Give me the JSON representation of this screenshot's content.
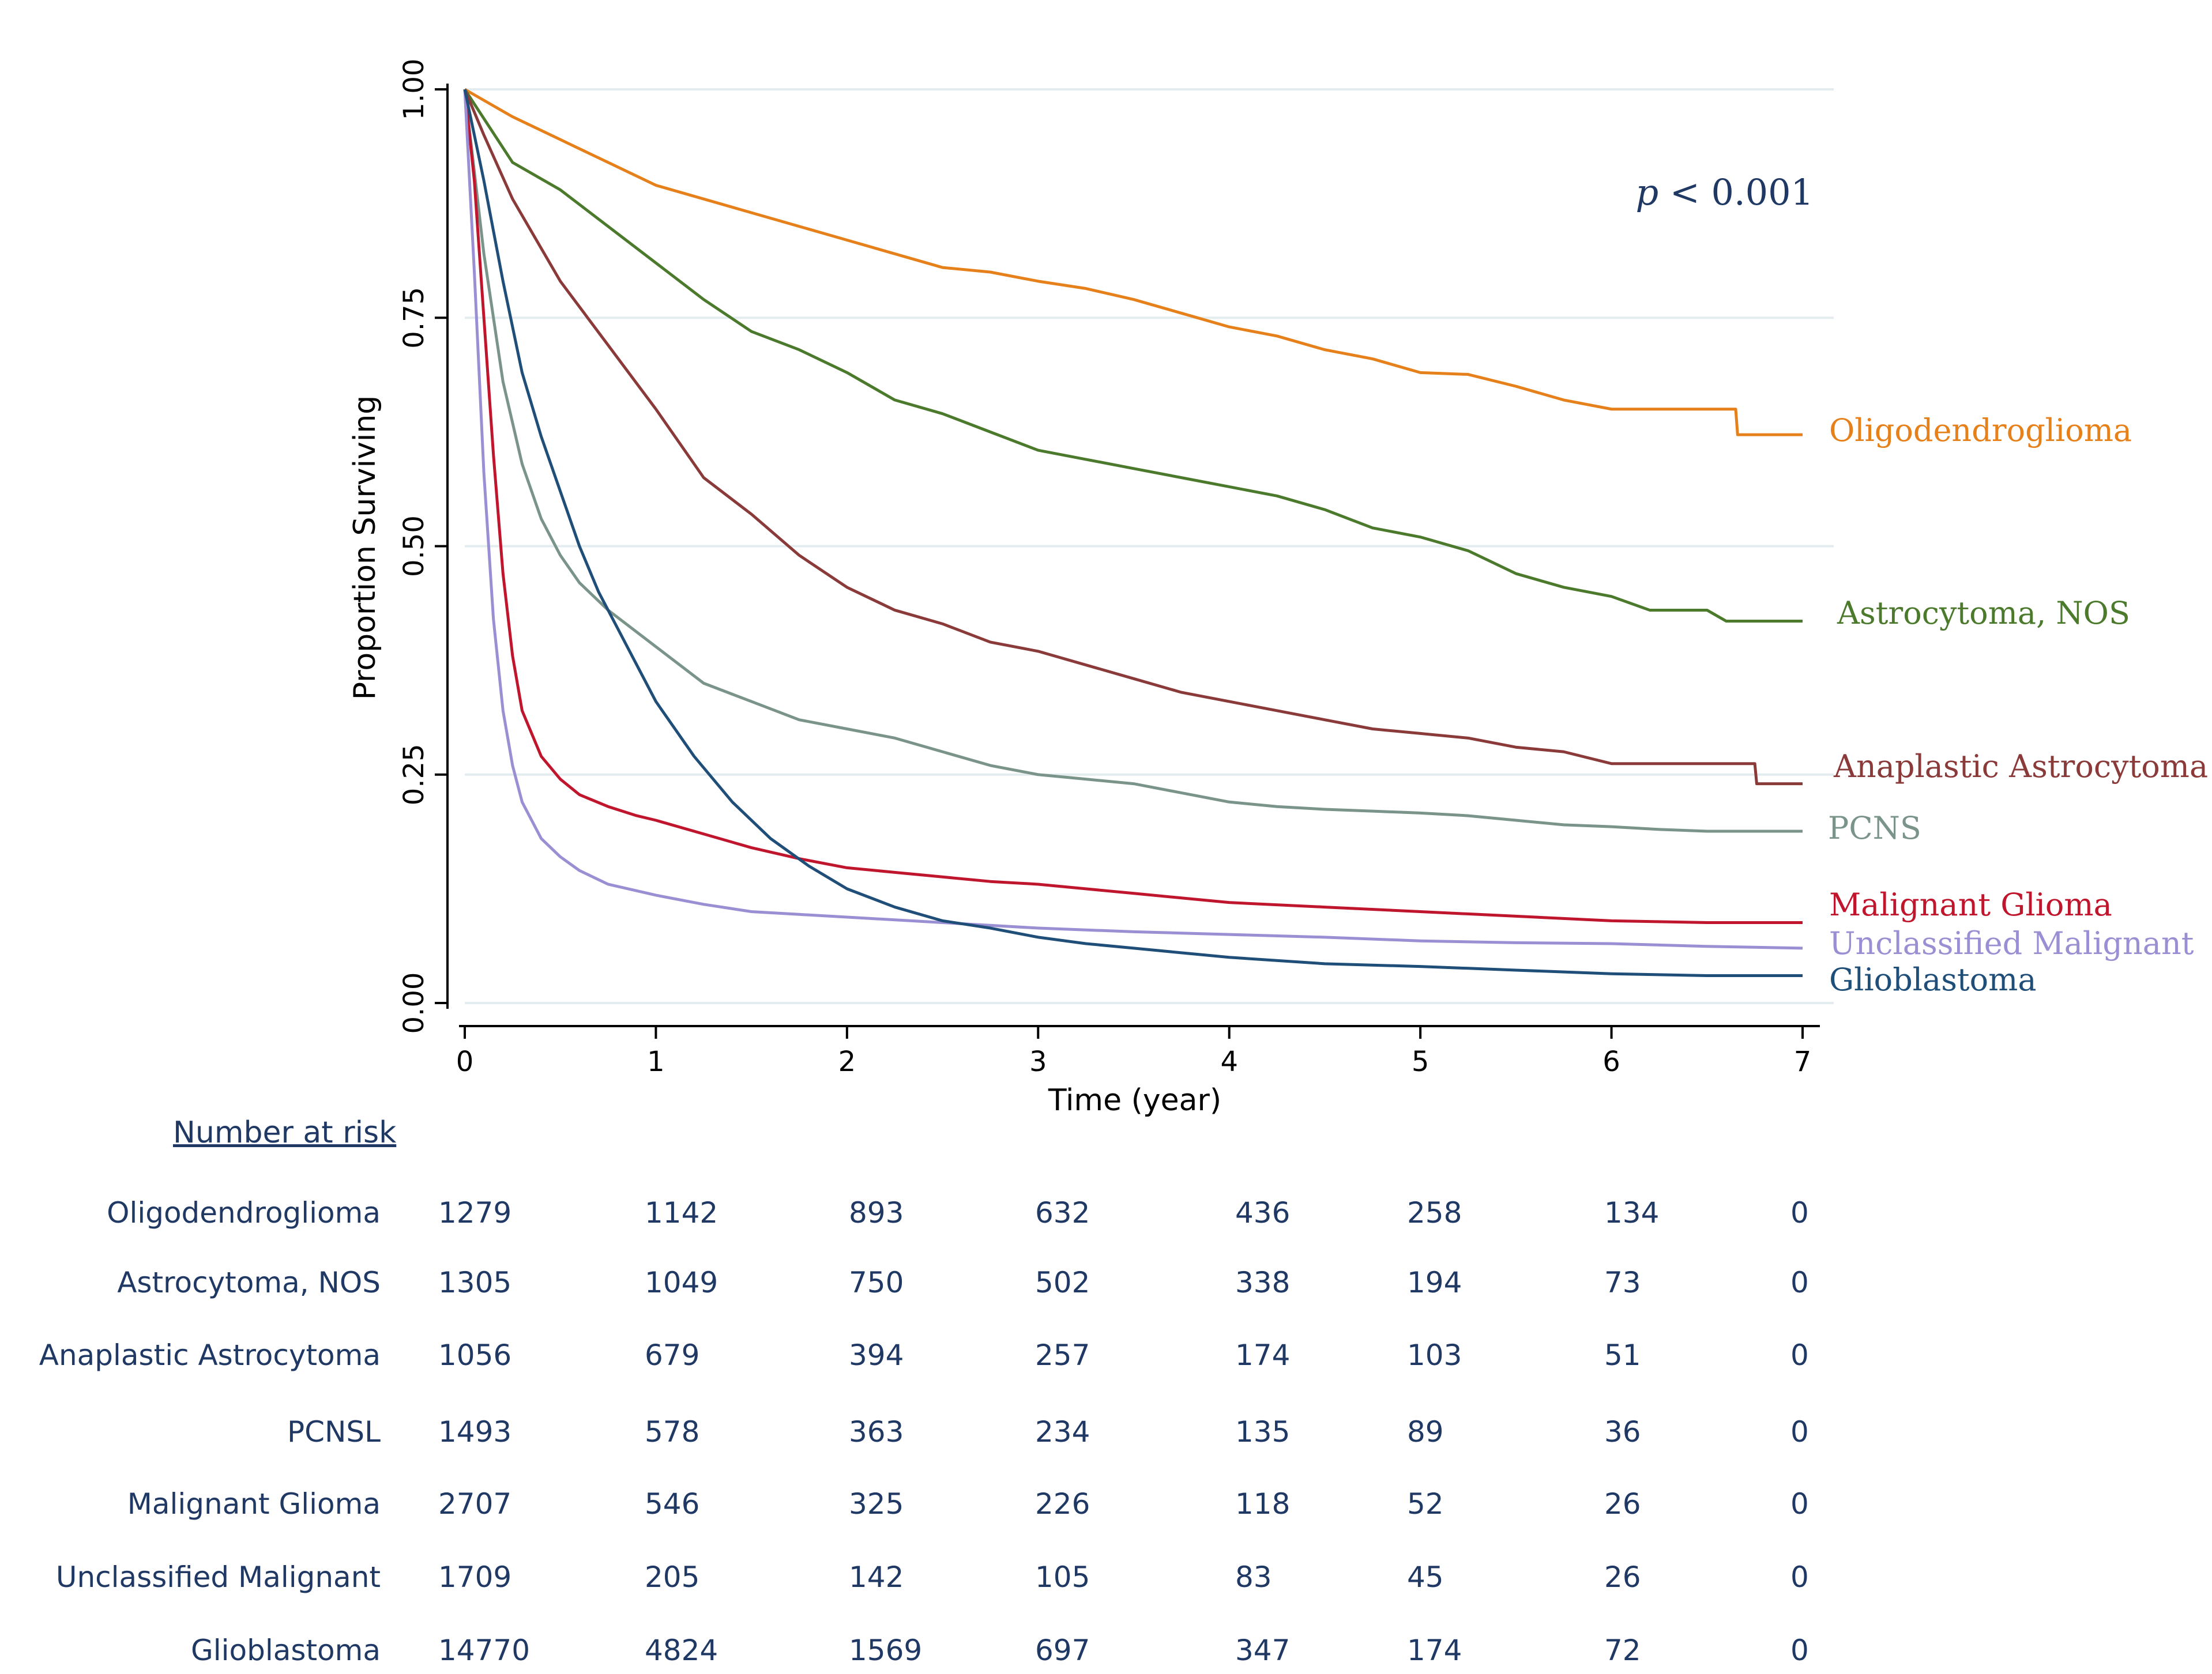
{
  "chart_data": {
    "type": "line",
    "subtype": "kaplan-meier",
    "xlabel": "Time (year)",
    "ylabel": "Proportion Surviving",
    "xlim": [
      0,
      7
    ],
    "ylim": [
      0,
      1
    ],
    "xticks": [
      "0",
      "1",
      "2",
      "3",
      "4",
      "5",
      "6",
      "7"
    ],
    "yticks": [
      "0.00",
      "0.25",
      "0.50",
      "0.75",
      "1.00"
    ],
    "grid": true,
    "annotation": {
      "italic": "p",
      "text": " < 0.001"
    },
    "series": [
      {
        "name": "Oligodendroglioma",
        "label": "Oligodendroglioma",
        "color": "#e6801a",
        "x": [
          0,
          0.25,
          0.5,
          0.75,
          1,
          1.25,
          1.5,
          1.75,
          2,
          2.25,
          2.5,
          2.75,
          3,
          3.25,
          3.5,
          3.75,
          4,
          4.25,
          4.5,
          4.75,
          5,
          5.25,
          5.5,
          5.75,
          6,
          6.25,
          6.5,
          6.65,
          6.66,
          7
        ],
        "y": [
          1.0,
          0.97,
          0.945,
          0.92,
          0.895,
          0.88,
          0.865,
          0.85,
          0.835,
          0.82,
          0.805,
          0.8,
          0.79,
          0.782,
          0.77,
          0.755,
          0.74,
          0.73,
          0.715,
          0.705,
          0.69,
          0.688,
          0.675,
          0.66,
          0.65,
          0.65,
          0.65,
          0.65,
          0.622,
          0.622
        ]
      },
      {
        "name": "Astrocytoma, NOS",
        "label": "Astrocytoma, NOS",
        "color": "#4c7a2c",
        "x": [
          0,
          0.25,
          0.5,
          0.75,
          1,
          1.25,
          1.5,
          1.75,
          2,
          2.25,
          2.5,
          2.75,
          3,
          3.25,
          3.5,
          3.75,
          4,
          4.25,
          4.5,
          4.75,
          5,
          5.25,
          5.5,
          5.75,
          6,
          6.2,
          6.5,
          6.6,
          7
        ],
        "y": [
          1.0,
          0.92,
          0.89,
          0.85,
          0.81,
          0.77,
          0.735,
          0.715,
          0.69,
          0.66,
          0.645,
          0.625,
          0.605,
          0.595,
          0.585,
          0.575,
          0.565,
          0.555,
          0.54,
          0.52,
          0.51,
          0.495,
          0.47,
          0.455,
          0.445,
          0.43,
          0.43,
          0.418,
          0.418
        ]
      },
      {
        "name": "Anaplastic Astrocytoma",
        "label": "Anaplastic Astrocytoma",
        "color": "#8b3a3a",
        "x": [
          0,
          0.1,
          0.25,
          0.5,
          0.75,
          1,
          1.25,
          1.5,
          1.75,
          2,
          2.25,
          2.5,
          2.75,
          3,
          3.25,
          3.5,
          3.75,
          4,
          4.25,
          4.5,
          4.75,
          5,
          5.25,
          5.5,
          5.75,
          6,
          6.25,
          6.5,
          6.75,
          6.76,
          7
        ],
        "y": [
          1.0,
          0.95,
          0.88,
          0.79,
          0.72,
          0.65,
          0.575,
          0.535,
          0.49,
          0.455,
          0.43,
          0.415,
          0.395,
          0.385,
          0.37,
          0.355,
          0.34,
          0.33,
          0.32,
          0.31,
          0.3,
          0.295,
          0.29,
          0.28,
          0.275,
          0.262,
          0.262,
          0.262,
          0.262,
          0.24,
          0.24
        ]
      },
      {
        "name": "PCNSL",
        "label": "PCNS",
        "color": "#7a948a",
        "x": [
          0,
          0.1,
          0.2,
          0.3,
          0.4,
          0.5,
          0.6,
          0.75,
          1,
          1.25,
          1.5,
          1.75,
          2,
          2.25,
          2.5,
          2.75,
          3,
          3.25,
          3.5,
          3.75,
          4,
          4.25,
          4.5,
          4.75,
          5,
          5.25,
          5.5,
          5.75,
          6,
          6.25,
          6.5,
          7
        ],
        "y": [
          1.0,
          0.82,
          0.68,
          0.59,
          0.53,
          0.49,
          0.46,
          0.43,
          0.39,
          0.35,
          0.33,
          0.31,
          0.3,
          0.29,
          0.275,
          0.26,
          0.25,
          0.245,
          0.24,
          0.23,
          0.22,
          0.215,
          0.212,
          0.21,
          0.208,
          0.205,
          0.2,
          0.195,
          0.193,
          0.19,
          0.188,
          0.188
        ]
      },
      {
        "name": "Malignant Glioma",
        "label": "Malignant Glioma",
        "color": "#c0162d",
        "x": [
          0,
          0.05,
          0.1,
          0.15,
          0.2,
          0.25,
          0.3,
          0.4,
          0.5,
          0.6,
          0.75,
          0.9,
          1,
          1.25,
          1.5,
          1.75,
          2,
          2.25,
          2.5,
          2.75,
          3,
          3.25,
          3.5,
          3.75,
          4,
          4.5,
          5,
          5.5,
          6,
          6.5,
          7
        ],
        "y": [
          1.0,
          0.9,
          0.75,
          0.6,
          0.47,
          0.38,
          0.32,
          0.27,
          0.245,
          0.228,
          0.215,
          0.205,
          0.2,
          0.185,
          0.17,
          0.158,
          0.148,
          0.143,
          0.138,
          0.133,
          0.13,
          0.125,
          0.12,
          0.115,
          0.11,
          0.105,
          0.1,
          0.095,
          0.09,
          0.088,
          0.088
        ]
      },
      {
        "name": "Unclassified Malignant",
        "label": "Unclassified Malignant",
        "color": "#9b8fd4",
        "x": [
          0,
          0.05,
          0.1,
          0.15,
          0.2,
          0.25,
          0.3,
          0.4,
          0.5,
          0.6,
          0.75,
          1,
          1.25,
          1.5,
          1.75,
          2,
          2.5,
          3,
          3.5,
          4,
          4.5,
          5,
          5.5,
          6,
          6.5,
          7
        ],
        "y": [
          1.0,
          0.8,
          0.58,
          0.42,
          0.32,
          0.26,
          0.22,
          0.18,
          0.16,
          0.145,
          0.13,
          0.118,
          0.108,
          0.1,
          0.097,
          0.094,
          0.088,
          0.082,
          0.078,
          0.075,
          0.072,
          0.068,
          0.066,
          0.065,
          0.062,
          0.06
        ]
      },
      {
        "name": "Glioblastoma",
        "label": "Glioblastoma",
        "color": "#1f4e79",
        "x": [
          0,
          0.1,
          0.2,
          0.3,
          0.4,
          0.5,
          0.6,
          0.7,
          0.8,
          0.9,
          1,
          1.2,
          1.4,
          1.6,
          1.8,
          2,
          2.25,
          2.5,
          2.75,
          3,
          3.25,
          3.5,
          3.75,
          4,
          4.5,
          5,
          5.5,
          6,
          6.5,
          7
        ],
        "y": [
          1.0,
          0.9,
          0.79,
          0.69,
          0.62,
          0.56,
          0.5,
          0.45,
          0.41,
          0.37,
          0.33,
          0.27,
          0.22,
          0.18,
          0.15,
          0.125,
          0.105,
          0.09,
          0.082,
          0.072,
          0.065,
          0.06,
          0.055,
          0.05,
          0.043,
          0.04,
          0.036,
          0.032,
          0.03,
          0.03
        ]
      }
    ]
  },
  "risk_table": {
    "title": "Number at risk",
    "rows": [
      {
        "label": "Oligodendroglioma",
        "values": [
          "1279",
          "1142",
          "893",
          "632",
          "436",
          "258",
          "134",
          "0"
        ]
      },
      {
        "label": "Astrocytoma, NOS",
        "values": [
          "1305",
          "1049",
          "750",
          "502",
          "338",
          "194",
          "73",
          "0"
        ]
      },
      {
        "label": "Anaplastic Astrocytoma",
        "values": [
          "1056",
          "679",
          "394",
          "257",
          "174",
          "103",
          "51",
          "0"
        ]
      },
      {
        "label": "PCNSL",
        "values": [
          "1493",
          "578",
          "363",
          "234",
          "135",
          "89",
          "36",
          "0"
        ]
      },
      {
        "label": "Malignant Glioma",
        "values": [
          "2707",
          "546",
          "325",
          "226",
          "118",
          "52",
          "26",
          "0"
        ]
      },
      {
        "label": "Unclassified Malignant",
        "values": [
          "1709",
          "205",
          "142",
          "105",
          "83",
          "45",
          "26",
          "0"
        ]
      },
      {
        "label": "Glioblastoma",
        "values": [
          "14770",
          "4824",
          "1569",
          "697",
          "347",
          "174",
          "72",
          "0"
        ]
      }
    ]
  }
}
